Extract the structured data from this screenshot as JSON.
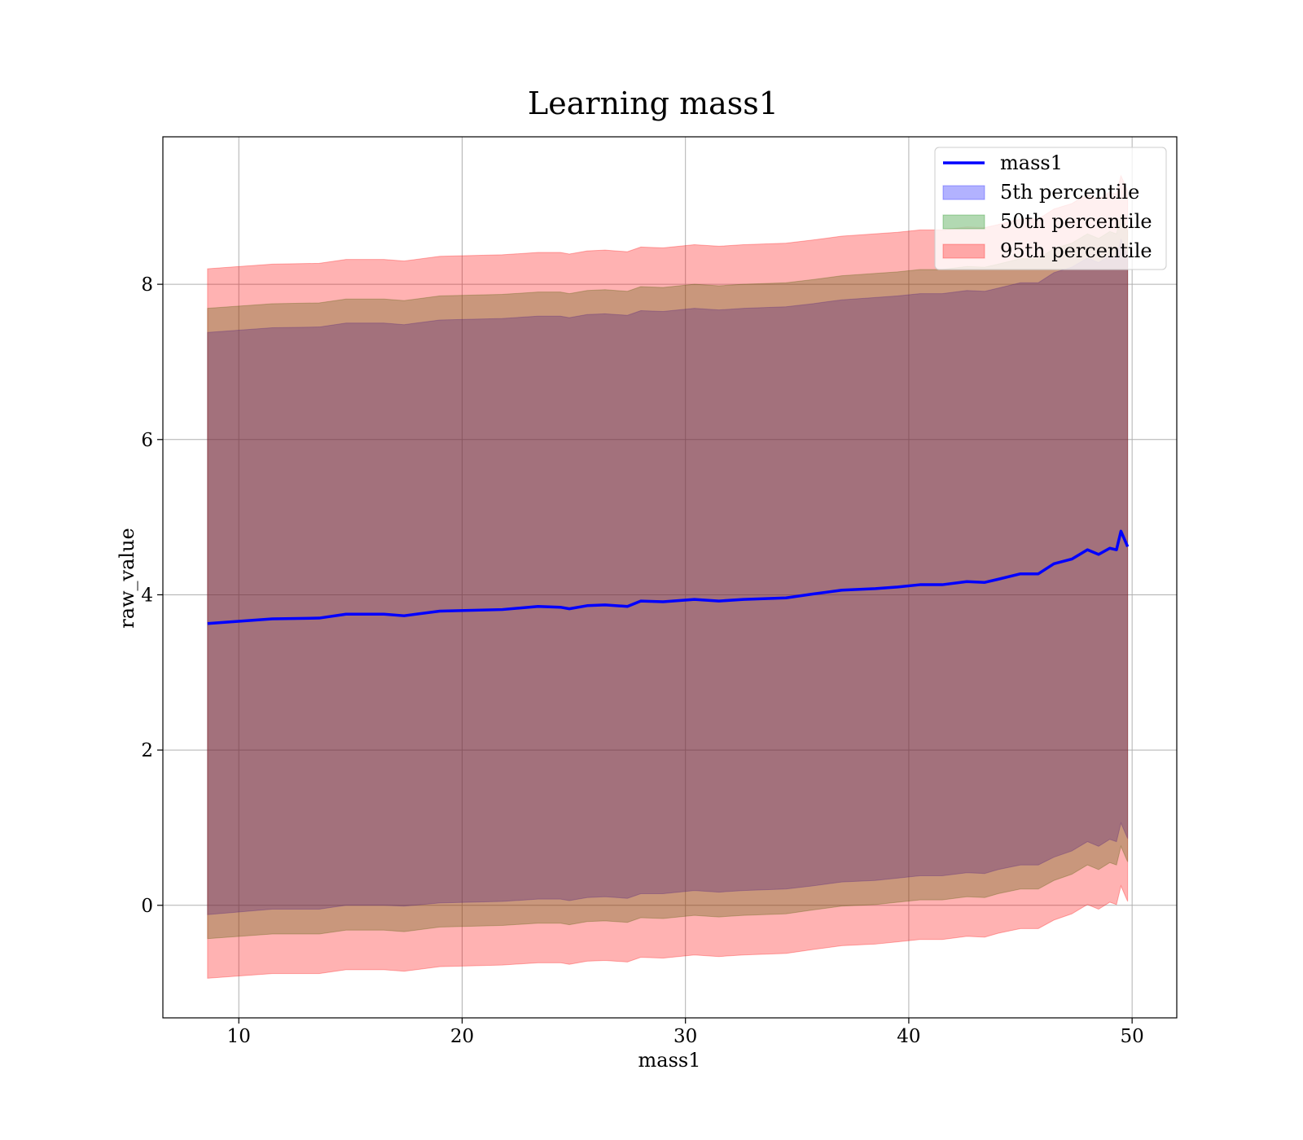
{
  "chart_data": {
    "type": "area",
    "title": "Learning mass1",
    "xlabel": "mass1",
    "ylabel": "raw_value",
    "xlim": [
      6.6,
      52.0
    ],
    "ylim": [
      -1.45,
      9.9
    ],
    "xticks": [
      10,
      20,
      30,
      40,
      50
    ],
    "yticks": [
      0,
      2,
      4,
      6,
      8
    ],
    "grid": true,
    "legend_position": "top-right",
    "colors": {
      "line": "#0000ff",
      "band_5th": "#0000ff",
      "band_50th": "#008000",
      "band_95th": "#ff0000"
    },
    "x": [
      8.6,
      11.5,
      13.6,
      14.8,
      16.5,
      17.4,
      19.0,
      21.8,
      23.4,
      24.4,
      24.8,
      25.6,
      26.4,
      27.4,
      28.0,
      29.0,
      30.4,
      31.5,
      32.6,
      34.5,
      35.7,
      37.0,
      38.5,
      39.5,
      40.5,
      41.5,
      42.6,
      43.4,
      44.0,
      45.0,
      45.8,
      46.5,
      47.3,
      48.0,
      48.5,
      49.0,
      49.3,
      49.5,
      49.8
    ],
    "series": [
      {
        "name": "mass1",
        "role": "line",
        "values": [
          3.63,
          3.69,
          3.7,
          3.75,
          3.75,
          3.73,
          3.79,
          3.81,
          3.85,
          3.84,
          3.82,
          3.86,
          3.87,
          3.85,
          3.92,
          3.91,
          3.94,
          3.92,
          3.94,
          3.96,
          4.01,
          4.06,
          4.08,
          4.1,
          4.13,
          4.13,
          4.17,
          4.16,
          4.2,
          4.27,
          4.27,
          4.4,
          4.46,
          4.58,
          4.52,
          4.6,
          4.58,
          4.82,
          4.62
        ]
      },
      {
        "name": "5th percentile",
        "role": "band",
        "lower": [
          -0.12,
          -0.05,
          -0.05,
          0.0,
          0.0,
          -0.01,
          0.03,
          0.05,
          0.08,
          0.08,
          0.06,
          0.1,
          0.11,
          0.09,
          0.15,
          0.15,
          0.19,
          0.17,
          0.19,
          0.21,
          0.25,
          0.3,
          0.32,
          0.35,
          0.38,
          0.38,
          0.42,
          0.41,
          0.46,
          0.52,
          0.52,
          0.62,
          0.7,
          0.82,
          0.76,
          0.85,
          0.82,
          1.06,
          0.86
        ],
        "upper": [
          7.38,
          7.44,
          7.45,
          7.5,
          7.5,
          7.48,
          7.54,
          7.56,
          7.59,
          7.59,
          7.57,
          7.61,
          7.62,
          7.6,
          7.66,
          7.65,
          7.69,
          7.67,
          7.69,
          7.71,
          7.75,
          7.8,
          7.83,
          7.85,
          7.88,
          7.88,
          7.92,
          7.91,
          7.95,
          8.02,
          8.02,
          8.15,
          8.22,
          8.34,
          8.28,
          8.37,
          8.34,
          8.58,
          8.38
        ]
      },
      {
        "name": "50th percentile",
        "role": "band",
        "lower": [
          -0.43,
          -0.37,
          -0.37,
          -0.32,
          -0.32,
          -0.34,
          -0.28,
          -0.26,
          -0.23,
          -0.23,
          -0.25,
          -0.21,
          -0.2,
          -0.22,
          -0.16,
          -0.17,
          -0.13,
          -0.15,
          -0.13,
          -0.11,
          -0.06,
          -0.01,
          0.01,
          0.04,
          0.07,
          0.07,
          0.11,
          0.1,
          0.15,
          0.21,
          0.21,
          0.32,
          0.4,
          0.52,
          0.46,
          0.55,
          0.52,
          0.76,
          0.56
        ],
        "upper": [
          7.69,
          7.75,
          7.76,
          7.81,
          7.81,
          7.79,
          7.85,
          7.87,
          7.9,
          7.9,
          7.88,
          7.92,
          7.93,
          7.91,
          7.97,
          7.96,
          8.0,
          7.98,
          8.0,
          8.02,
          8.06,
          8.11,
          8.14,
          8.16,
          8.19,
          8.19,
          8.23,
          8.22,
          8.26,
          8.33,
          8.33,
          8.46,
          8.53,
          8.65,
          8.59,
          8.68,
          8.65,
          8.89,
          8.69
        ]
      },
      {
        "name": "95th percentile",
        "role": "band",
        "lower": [
          -0.94,
          -0.88,
          -0.88,
          -0.83,
          -0.83,
          -0.85,
          -0.79,
          -0.77,
          -0.74,
          -0.74,
          -0.76,
          -0.72,
          -0.71,
          -0.73,
          -0.67,
          -0.68,
          -0.64,
          -0.66,
          -0.64,
          -0.62,
          -0.57,
          -0.52,
          -0.5,
          -0.47,
          -0.44,
          -0.44,
          -0.4,
          -0.41,
          -0.36,
          -0.3,
          -0.3,
          -0.19,
          -0.11,
          0.01,
          -0.05,
          0.04,
          0.01,
          0.25,
          0.05
        ],
        "upper": [
          8.2,
          8.26,
          8.27,
          8.32,
          8.32,
          8.3,
          8.36,
          8.38,
          8.41,
          8.41,
          8.39,
          8.43,
          8.44,
          8.42,
          8.48,
          8.47,
          8.51,
          8.49,
          8.51,
          8.53,
          8.57,
          8.62,
          8.65,
          8.67,
          8.7,
          8.7,
          8.74,
          8.73,
          8.77,
          8.84,
          8.84,
          8.97,
          9.04,
          9.16,
          9.1,
          9.19,
          9.16,
          9.4,
          9.2
        ]
      }
    ]
  }
}
